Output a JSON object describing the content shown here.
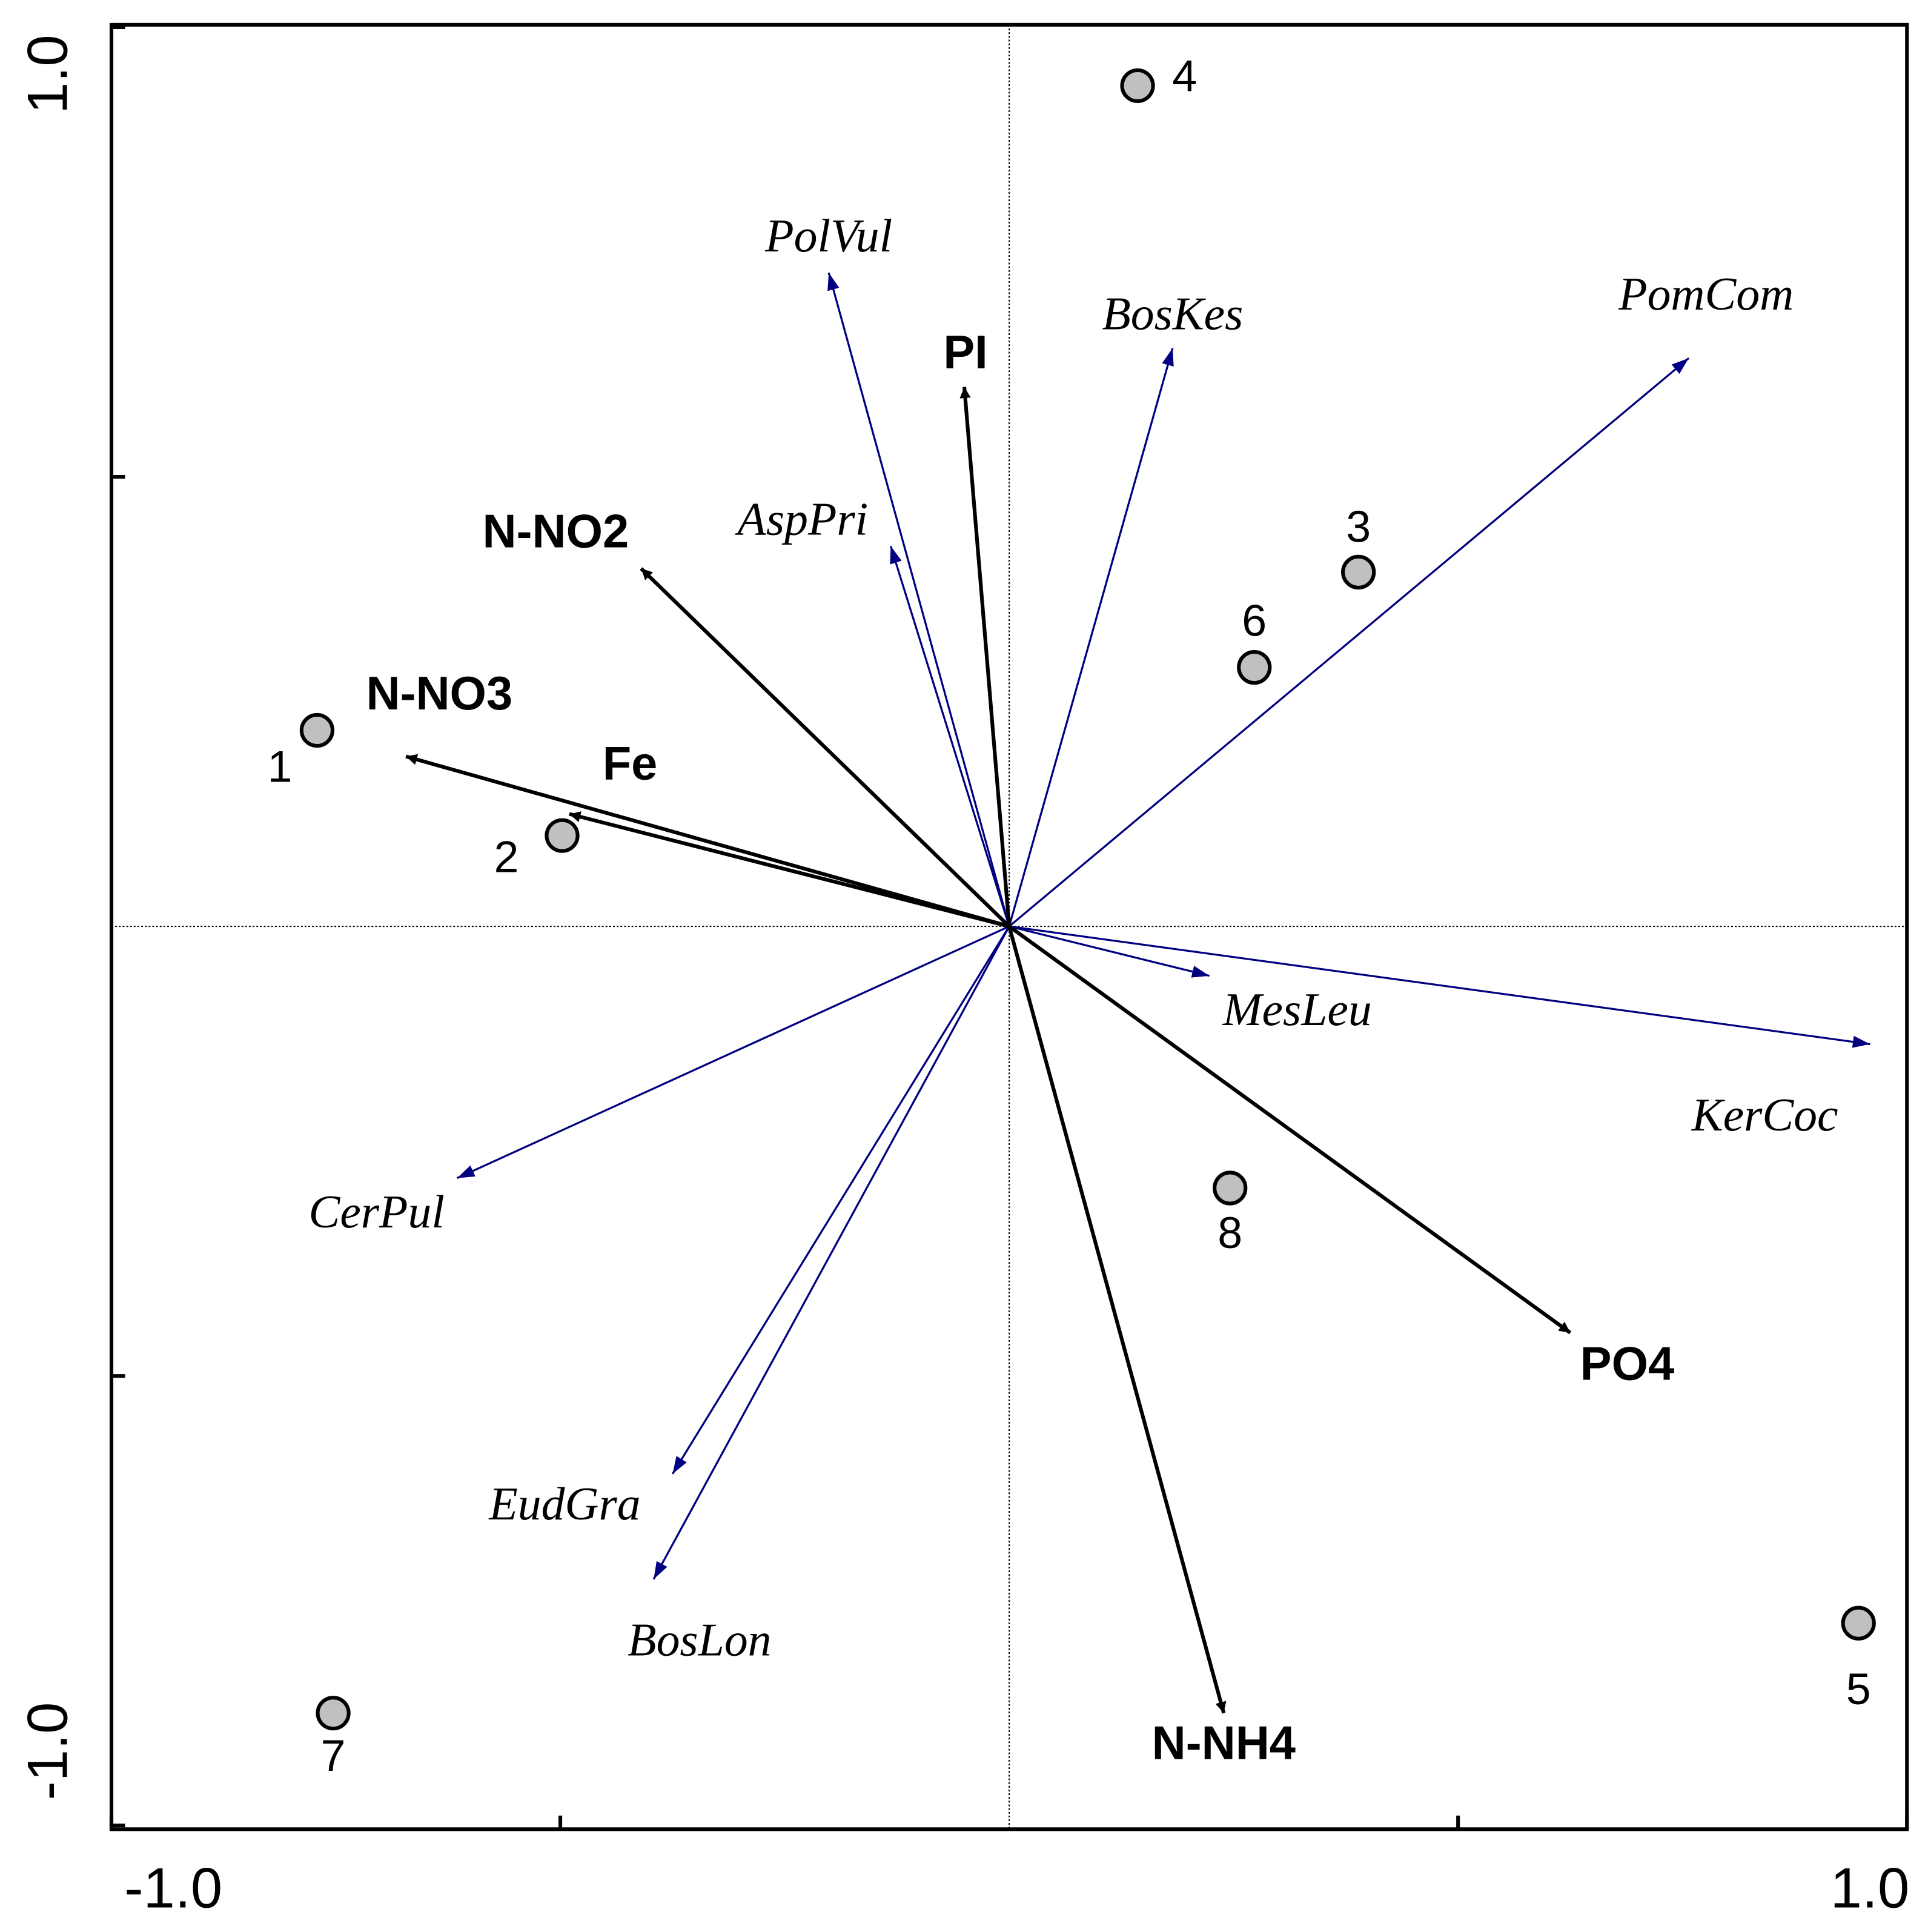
{
  "chart_data": {
    "type": "biplot",
    "xlim": [
      -1,
      1
    ],
    "ylim": [
      -1,
      1
    ],
    "xticks": [
      {
        "value": -1,
        "label": "-1.0"
      },
      {
        "value": -0.5,
        "label": null
      },
      {
        "value": 0.5,
        "label": null
      },
      {
        "value": 1,
        "label": "1.0"
      }
    ],
    "yticks": [
      {
        "value": -1,
        "label": "-1.0"
      },
      {
        "value": -0.5,
        "label": null
      },
      {
        "value": 0.5,
        "label": null
      },
      {
        "value": 1,
        "label": "1.0"
      }
    ],
    "sites": {
      "color": "#c0c0c0",
      "labels": [
        "1",
        "2",
        "3",
        "4",
        "5",
        "6",
        "7",
        "8"
      ],
      "x": [
        -0.771,
        -0.498,
        0.389,
        0.143,
        0.946,
        0.273,
        -0.753,
        0.246
      ],
      "y": [
        0.218,
        0.101,
        0.394,
        0.935,
        -0.775,
        0.288,
        -0.875,
        -0.291
      ]
    },
    "environment": {
      "color": "#000000",
      "labels": [
        "PI",
        "N-NO2",
        "N-NO3",
        "Fe",
        "PO4",
        "N-NH4"
      ],
      "x": [
        -0.05,
        -0.41,
        -0.672,
        -0.49,
        0.625,
        0.239
      ],
      "y": [
        0.6,
        0.398,
        0.189,
        0.125,
        -0.452,
        -0.875
      ]
    },
    "species": {
      "color": "#000080",
      "labels": [
        "PolVul",
        "BosKes",
        "PomCom",
        "AspPri",
        "MesLeu",
        "KerCoc",
        "CerPul",
        "EudGra",
        "BosLon"
      ],
      "x": [
        -0.201,
        0.182,
        0.757,
        -0.132,
        0.223,
        0.959,
        -0.615,
        -0.375,
        -0.396
      ],
      "y": [
        0.727,
        0.643,
        0.632,
        0.423,
        -0.055,
        -0.131,
        -0.28,
        -0.609,
        -0.726
      ]
    }
  }
}
